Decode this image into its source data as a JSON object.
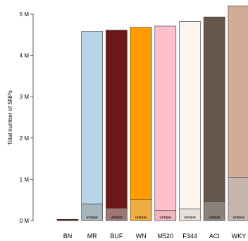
{
  "chart_data": {
    "type": "bar",
    "stacked": true,
    "ylabel": "Total number of SNPs",
    "ylim": [
      0,
      5.0
    ],
    "yunit": "M",
    "yticks": [
      0,
      1,
      2,
      3,
      4,
      5
    ],
    "ytick_labels": [
      "0 M",
      "1 M",
      "2 M",
      "3 M",
      "4 M",
      "5 M"
    ],
    "categories": [
      "BN",
      "MR",
      "BUF",
      "WN",
      "M520",
      "F344",
      "ACI",
      "WKY"
    ],
    "series": [
      {
        "name": "unique",
        "values": [
          0.03,
          0.4,
          0.3,
          0.5,
          0.25,
          0.28,
          0.46,
          1.05
        ]
      },
      {
        "values": [
          0.0,
          4.18,
          4.31,
          4.18,
          4.46,
          4.54,
          4.47,
          4.15
        ]
      }
    ],
    "totals": [
      0.03,
      4.58,
      4.61,
      4.68,
      4.71,
      4.82,
      4.93,
      5.2
    ],
    "colors": [
      "#6b1818",
      "#b8d5e8",
      "#6b1818",
      "#ff9d00",
      "#ffc0cc",
      "#fdf5ee",
      "#66574a",
      "#d1ac96"
    ],
    "unique_colors": [
      "#6b1818",
      "#a7b5bd",
      "#9e7673",
      "#efae3e",
      "#efb6bf",
      "#e7dfd9",
      "#8b8178",
      "#c6b6ad"
    ],
    "unique_label": "unique",
    "grid": false
  }
}
